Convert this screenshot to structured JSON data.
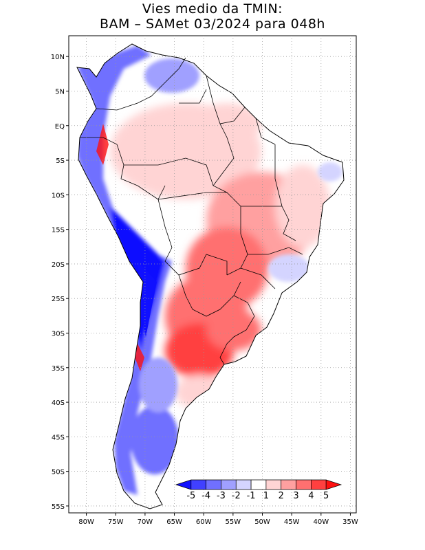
{
  "title": {
    "line1": "Vies medio da TMIN:",
    "line2": "BAM – SAMet 03/2024  para 048h"
  },
  "map": {
    "variable": "TMIN bias",
    "lon_range": [
      -83,
      -34
    ],
    "lat_range": [
      -56,
      13
    ],
    "lat_ticks": [
      "10N",
      "5N",
      "EQ",
      "5S",
      "10S",
      "15S",
      "20S",
      "25S",
      "30S",
      "35S",
      "40S",
      "45S",
      "50S",
      "55S"
    ],
    "lon_ticks": [
      "80W",
      "75W",
      "70W",
      "65W",
      "60W",
      "55W",
      "50W",
      "45W",
      "40W",
      "35W"
    ],
    "grid": "dotted"
  },
  "colorbar": {
    "labels": [
      "-5",
      "-4",
      "-3",
      "-2",
      "-1",
      "1",
      "2",
      "3",
      "4",
      "5"
    ],
    "colors": [
      "#1010ff",
      "#4040ff",
      "#7070ff",
      "#a0a0ff",
      "#d4d4ff",
      "#ffffff",
      "#ffd4d4",
      "#ffa0a0",
      "#ff7070",
      "#ff4040",
      "#ff1010"
    ]
  }
}
